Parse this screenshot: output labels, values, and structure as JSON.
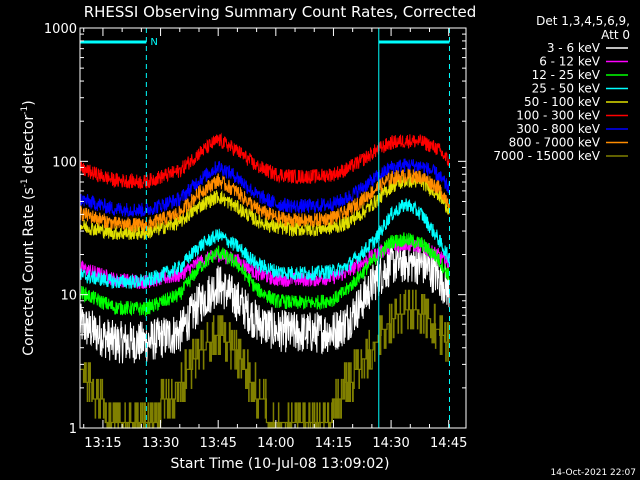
{
  "chart_data": {
    "type": "line",
    "title": "RHESSI Observing Summary Count Rates, Corrected",
    "xlabel": "Start Time (10-Jul-08 13:09:02)",
    "ylabel_main": "Corrected Count Rate (s",
    "ylabel_sup1": "-1",
    "ylabel_mid": " detector",
    "ylabel_sup2": "-1",
    "ylabel_end": ")",
    "yscale": "log",
    "ylim": [
      1,
      1000
    ],
    "xlim_minutes": [
      789.03,
      889.5
    ],
    "x_ticks": [
      {
        "label": "13:15",
        "min": 795
      },
      {
        "label": "13:30",
        "min": 810
      },
      {
        "label": "13:45",
        "min": 825
      },
      {
        "label": "14:00",
        "min": 840
      },
      {
        "label": "14:15",
        "min": 855
      },
      {
        "label": "14:30",
        "min": 870
      },
      {
        "label": "14:45",
        "min": 885
      }
    ],
    "y_ticks": [
      {
        "label": "1",
        "value": 1
      },
      {
        "label": "10",
        "value": 10
      },
      {
        "label": "100",
        "value": 100
      },
      {
        "label": "1000",
        "value": 1000
      }
    ],
    "legend_header": [
      "Det 1,3,4,5,6,9,",
      "Att 0"
    ],
    "legend_position": "top-right",
    "footer_date": "14-Oct-2021 22:07",
    "night_label": "N",
    "night_bars": [
      [
        789.03,
        806.3
      ],
      [
        866.8,
        885.2
      ]
    ],
    "vlines_solid": [
      789.03,
      866.8
    ],
    "vlines_dashed": [
      806.3,
      885.2
    ],
    "series": [
      {
        "name": "3 - 6 keV",
        "color": "#ffffff",
        "x": [
          789.03,
          798,
          806,
          815,
          820,
          825,
          830,
          835,
          840,
          845,
          850,
          855,
          858,
          862,
          866,
          870,
          874,
          878,
          882,
          885
        ],
        "y": [
          6,
          4.4,
          4.4,
          5.2,
          8.5,
          12,
          9,
          6.3,
          5.4,
          5.2,
          5.2,
          5.3,
          6,
          8.5,
          13,
          17,
          17.5,
          17,
          14,
          11
        ]
      },
      {
        "name": "6 - 12 keV",
        "color": "#ff00ff",
        "x": [
          789.03,
          798,
          806,
          815,
          820,
          825,
          830,
          835,
          840,
          845,
          850,
          855,
          858,
          862,
          866,
          870,
          874,
          878,
          882,
          885
        ],
        "y": [
          16,
          13,
          12.5,
          14,
          17.5,
          20,
          18,
          14.5,
          13,
          13,
          13,
          13.5,
          14.5,
          17,
          20,
          23,
          24,
          23,
          20,
          17
        ]
      },
      {
        "name": "12 - 25 keV",
        "color": "#00ff00",
        "x": [
          789.03,
          798,
          806,
          815,
          820,
          825,
          830,
          835,
          840,
          845,
          850,
          855,
          858,
          862,
          866,
          870,
          874,
          878,
          882,
          885
        ],
        "y": [
          10.5,
          8,
          7.8,
          10,
          16,
          21,
          17,
          11,
          9,
          8.7,
          8.7,
          9.2,
          10.5,
          14,
          19,
          25,
          26,
          24,
          19,
          14
        ]
      },
      {
        "name": "25 - 50 keV",
        "color": "#00ffff",
        "x": [
          789.03,
          798,
          806,
          815,
          820,
          825,
          830,
          835,
          840,
          845,
          850,
          855,
          858,
          862,
          866,
          870,
          874,
          878,
          882,
          885
        ],
        "y": [
          14,
          12.5,
          12.5,
          16,
          23,
          28,
          23,
          17,
          15,
          14.5,
          14.5,
          15,
          16,
          20,
          26,
          40,
          48,
          40,
          27,
          19
        ]
      },
      {
        "name": "50 - 100 keV",
        "color": "#e0e000",
        "x": [
          789.03,
          798,
          806,
          815,
          820,
          825,
          830,
          835,
          840,
          845,
          850,
          855,
          858,
          862,
          866,
          870,
          874,
          878,
          882,
          885
        ],
        "y": [
          33,
          29,
          29,
          35,
          46,
          55,
          45,
          36,
          32,
          31,
          31,
          32,
          34,
          40,
          50,
          65,
          72,
          70,
          58,
          44
        ]
      },
      {
        "name": "100 - 300 keV",
        "color": "#ff0000",
        "x": [
          789.03,
          798,
          806,
          815,
          820,
          825,
          830,
          835,
          840,
          845,
          850,
          855,
          858,
          862,
          866,
          870,
          874,
          878,
          882,
          885
        ],
        "y": [
          88,
          72,
          70,
          85,
          115,
          145,
          120,
          92,
          80,
          77,
          77,
          80,
          86,
          100,
          120,
          138,
          143,
          140,
          125,
          100
        ]
      },
      {
        "name": "300 - 800 keV",
        "color": "#0000ff",
        "x": [
          789.03,
          798,
          806,
          815,
          820,
          825,
          830,
          835,
          840,
          845,
          850,
          855,
          858,
          862,
          866,
          870,
          874,
          878,
          882,
          885
        ],
        "y": [
          52,
          44,
          43,
          52,
          72,
          92,
          76,
          56,
          48,
          46,
          46,
          48,
          52,
          62,
          75,
          90,
          94,
          92,
          80,
          63
        ]
      },
      {
        "name": "800 - 7000 keV",
        "color": "#ff8c00",
        "x": [
          789.03,
          798,
          806,
          815,
          820,
          825,
          830,
          835,
          840,
          845,
          850,
          855,
          858,
          862,
          866,
          870,
          874,
          878,
          882,
          885
        ],
        "y": [
          41,
          34,
          33,
          41,
          58,
          72,
          59,
          44,
          38,
          36,
          36,
          38,
          41,
          50,
          62,
          75,
          78,
          76,
          65,
          50
        ]
      },
      {
        "name": "7000 - 15000 keV",
        "color": "#808000",
        "x": [
          789.03,
          794,
          798,
          806,
          812,
          816,
          820,
          825,
          830,
          834,
          838,
          842,
          848,
          852,
          856,
          860,
          864,
          868,
          872,
          876,
          880,
          885
        ],
        "y": [
          2.7,
          1.6,
          1,
          1,
          1.6,
          2.4,
          3.6,
          5.2,
          3.6,
          2.1,
          1.3,
          1,
          1,
          1,
          1.6,
          2.4,
          3.6,
          5.4,
          7.2,
          7.8,
          6.6,
          4.2
        ]
      }
    ]
  }
}
